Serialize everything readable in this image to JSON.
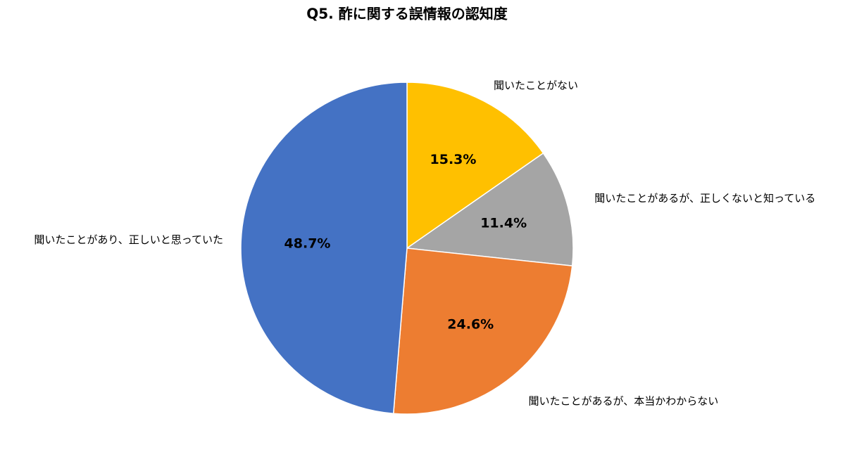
{
  "chart_data": {
    "type": "pie",
    "title": "Q5. 酢に関する誤情報の認知度",
    "categories": [
      "聞いたことがない",
      "聞いたことがあるが、正しくないと知っている",
      "聞いたことがあるが、本当かわからない",
      "聞いたことがあり、正しいと思っていた"
    ],
    "values": [
      15.3,
      11.4,
      24.6,
      48.7
    ],
    "value_labels": [
      "15.3%",
      "11.4%",
      "24.6%",
      "48.7%"
    ],
    "colors": [
      "#ffc000",
      "#a5a5a5",
      "#ed7d31",
      "#4472c4"
    ]
  }
}
